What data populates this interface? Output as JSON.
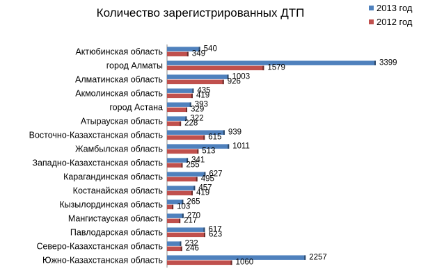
{
  "chart_data": {
    "type": "bar",
    "orientation": "horizontal",
    "title": "Количество зарегистрированных ДТП",
    "categories": [
      "Актюбинская область",
      "город Алматы",
      "Алматинская область",
      "Акмолинская область",
      "город Астана",
      "Атырауская область",
      "Восточно-Казахстанская область",
      "Жамбылская область",
      "Западно-Казахстанская область",
      "Карагандинская область",
      "Костанайская область",
      "Кызылординская область",
      "Мангистауская область",
      "Павлодарская область",
      "Северо-Казахстанская область",
      "Южно-Казахстанская область"
    ],
    "series": [
      {
        "name": "2013 год",
        "color": "#4f81bd",
        "values": [
          540,
          3399,
          1003,
          435,
          393,
          322,
          939,
          1011,
          341,
          627,
          457,
          265,
          270,
          617,
          232,
          2257
        ]
      },
      {
        "name": "2012 год",
        "color": "#c0504d",
        "values": [
          349,
          1579,
          926,
          419,
          329,
          228,
          615,
          513,
          255,
          495,
          419,
          103,
          217,
          623,
          246,
          1060
        ]
      }
    ],
    "xlim": [
      0,
      3399
    ],
    "grid": false,
    "legend": "top-right"
  }
}
